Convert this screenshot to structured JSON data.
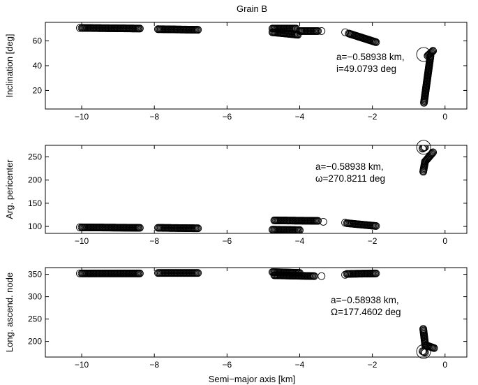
{
  "chart_data": [
    {
      "type": "scatter",
      "title": "Grain B",
      "xlabel": "",
      "ylabel": "Inclination [deg]",
      "xlim": [
        -11,
        0.6
      ],
      "ylim": [
        5,
        75
      ],
      "xticks": [
        -10,
        -8,
        -6,
        -4,
        -2,
        0
      ],
      "yticks": [
        20,
        40,
        60
      ],
      "marker": "open-circle",
      "grid": false,
      "annotation": [
        "a=−0.58938 km,",
        "i=49.0793 deg"
      ],
      "highlight": {
        "x": -0.58938,
        "y": 49.0793
      },
      "segments": [
        {
          "x": [
            -10.0,
            -8.4
          ],
          "y": [
            70.5,
            70.0
          ]
        },
        {
          "x": [
            -7.9,
            -6.8
          ],
          "y": [
            69.5,
            69.0
          ]
        },
        {
          "x": [
            -4.75,
            -4.1
          ],
          "y": [
            70.0,
            70.0
          ]
        },
        {
          "x": [
            -4.75,
            -4.05
          ],
          "y": [
            67.0,
            65.0
          ]
        },
        {
          "x": [
            -4.0,
            -3.5
          ],
          "y": [
            68.0,
            68.0
          ]
        },
        {
          "x": [
            -2.65,
            -1.9
          ],
          "y": [
            66.0,
            59.0
          ]
        },
        {
          "x": [
            -0.58,
            -0.4
          ],
          "y": [
            10.0,
            48.0
          ]
        },
        {
          "x": [
            -0.48,
            -0.33
          ],
          "y": [
            48.0,
            52.0
          ]
        }
      ],
      "points": [
        {
          "x": -10.05,
          "y": 70.5
        },
        {
          "x": -4.75,
          "y": 67.0
        },
        {
          "x": -3.4,
          "y": 68.0
        },
        {
          "x": -2.75,
          "y": 67.0
        }
      ]
    },
    {
      "type": "scatter",
      "xlabel": "",
      "ylabel": "Arg. pericenter",
      "xlim": [
        -11,
        0.6
      ],
      "ylim": [
        85,
        275
      ],
      "xticks": [
        -10,
        -8,
        -6,
        -4,
        -2,
        0
      ],
      "yticks": [
        100,
        150,
        200,
        250
      ],
      "marker": "open-circle",
      "grid": false,
      "annotation": [
        "a=−0.58938 km,",
        "ω=270.8211 deg"
      ],
      "highlight": {
        "x": -0.58938,
        "y": 270.8211
      },
      "segments": [
        {
          "x": [
            -10.0,
            -8.4
          ],
          "y": [
            98.0,
            97.0
          ]
        },
        {
          "x": [
            -7.9,
            -6.8
          ],
          "y": [
            97.0,
            96.0
          ]
        },
        {
          "x": [
            -4.7,
            -3.5
          ],
          "y": [
            113.0,
            112.0
          ]
        },
        {
          "x": [
            -4.75,
            -4.0
          ],
          "y": [
            93.0,
            92.0
          ]
        },
        {
          "x": [
            -2.7,
            -1.9
          ],
          "y": [
            107.0,
            101.0
          ]
        },
        {
          "x": [
            -0.6,
            -0.55
          ],
          "y": [
            218.0,
            240.0
          ]
        },
        {
          "x": [
            -0.55,
            -0.33
          ],
          "y": [
            240.0,
            260.0
          ]
        },
        {
          "x": [
            -0.62,
            -0.55
          ],
          "y": [
            268.0,
            271.0
          ]
        }
      ],
      "points": [
        {
          "x": -10.05,
          "y": 98.0
        },
        {
          "x": -3.35,
          "y": 110.0
        },
        {
          "x": -2.75,
          "y": 108.0
        }
      ]
    },
    {
      "type": "scatter",
      "xlabel": "Semi−major axis [km]",
      "ylabel": "Long. ascend. node",
      "xlim": [
        -11,
        0.6
      ],
      "ylim": [
        165,
        365
      ],
      "xticks": [
        -10,
        -8,
        -6,
        -4,
        -2,
        0
      ],
      "yticks": [
        200,
        250,
        300,
        350
      ],
      "marker": "open-circle",
      "grid": false,
      "annotation": [
        "a=−0.58938 km,",
        "Ω=177.4602 deg"
      ],
      "highlight": {
        "x": -0.58938,
        "y": 177.4602
      },
      "segments": [
        {
          "x": [
            -10.0,
            -8.4
          ],
          "y": [
            352.0,
            352.0
          ]
        },
        {
          "x": [
            -7.9,
            -6.8
          ],
          "y": [
            353.0,
            353.0
          ]
        },
        {
          "x": [
            -4.75,
            -4.0
          ],
          "y": [
            355.0,
            353.0
          ]
        },
        {
          "x": [
            -4.7,
            -3.6
          ],
          "y": [
            348.0,
            346.0
          ]
        },
        {
          "x": [
            -2.7,
            -1.9
          ],
          "y": [
            351.0,
            352.0
          ]
        },
        {
          "x": [
            -0.6,
            -0.55
          ],
          "y": [
            228.0,
            195.0
          ]
        },
        {
          "x": [
            -0.55,
            -0.3
          ],
          "y": [
            192.0,
            185.0
          ]
        },
        {
          "x": [
            -0.62,
            -0.55
          ],
          "y": [
            178.0,
            175.0
          ]
        }
      ],
      "points": [
        {
          "x": -10.05,
          "y": 352.0
        },
        {
          "x": -3.4,
          "y": 346.0
        },
        {
          "x": -2.75,
          "y": 349.0
        }
      ]
    }
  ]
}
